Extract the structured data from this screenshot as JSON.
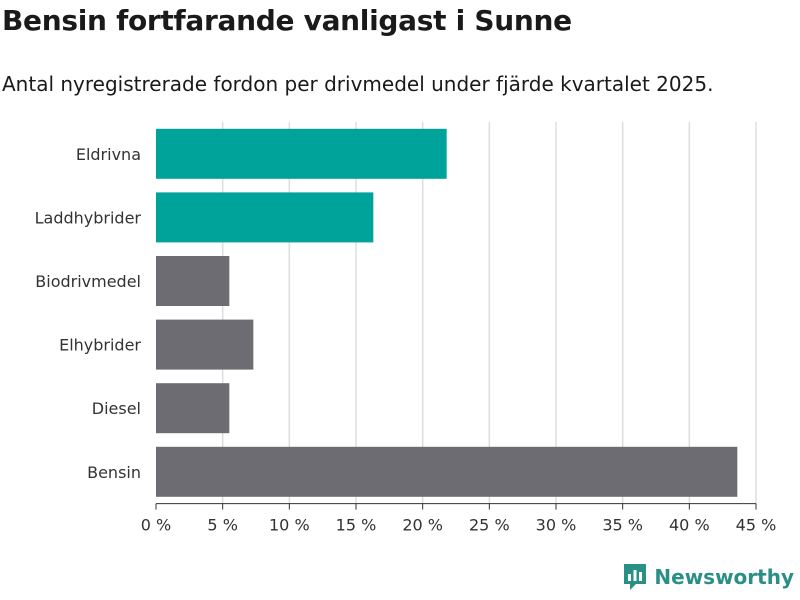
{
  "header": {
    "title": "Bensin fortfarande vanligast i Sunne",
    "subtitle": "Antal nyregistrerade fordon per drivmedel under fjärde kvartalet 2025."
  },
  "chart_data": {
    "type": "bar",
    "orientation": "horizontal",
    "categories": [
      "Eldrivna",
      "Laddhybrider",
      "Biodrivmedel",
      "Elhybrider",
      "Diesel",
      "Bensin"
    ],
    "values": [
      21.8,
      16.3,
      5.5,
      7.3,
      5.5,
      43.6
    ],
    "colors": [
      "#00a39a",
      "#00a39a",
      "#6d6c72",
      "#6d6c72",
      "#6d6c72",
      "#6d6c72"
    ],
    "xlim": [
      0,
      45
    ],
    "ticks": [
      0,
      5,
      10,
      15,
      20,
      25,
      30,
      35,
      40,
      45
    ],
    "tick_labels": [
      "0 %",
      "5 %",
      "10 %",
      "15 %",
      "20 %",
      "25 %",
      "30 %",
      "35 %",
      "40 %",
      "45 %"
    ],
    "xlabel": "",
    "ylabel": "",
    "grid": true
  },
  "branding": {
    "name": "Newsworthy",
    "color": "#2a8f86"
  }
}
